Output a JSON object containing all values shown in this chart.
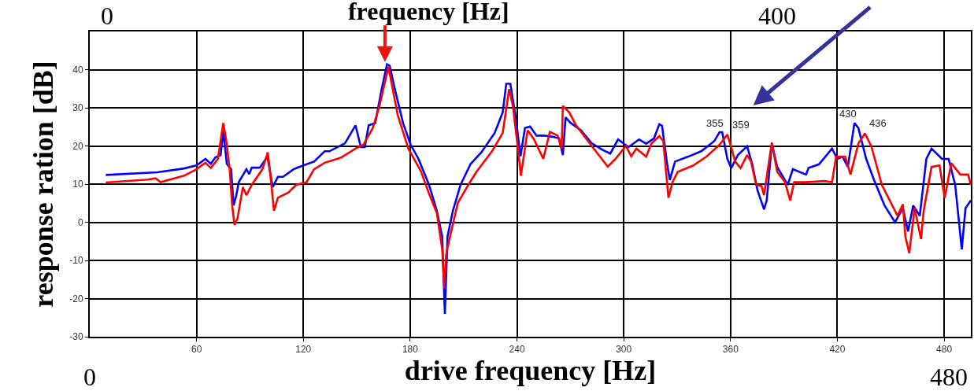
{
  "chart_data": {
    "type": "line",
    "title": "frequency [Hz]",
    "xlabel": "drive frequency [Hz]",
    "ylabel": "response ration [dB]",
    "xlim": [
      0,
      495
    ],
    "xticks": [
      60,
      120,
      180,
      240,
      300,
      360,
      420,
      480
    ],
    "ylim": [
      -30,
      50
    ],
    "yticks": [
      -30,
      -20,
      -10,
      0,
      10,
      20,
      30,
      40
    ],
    "grid": true,
    "marker": "none",
    "line_style": "solid",
    "annotations": [
      {
        "text": "355",
        "x": 355,
        "y": 23.6
      },
      {
        "text": "359",
        "x": 359,
        "y": 23
      },
      {
        "text": "430",
        "x": 430,
        "y": 26
      },
      {
        "text": "436",
        "x": 436,
        "y": 23.3
      },
      "0",
      "400",
      "0",
      "480"
    ],
    "series": [
      {
        "color": "#0000ff",
        "x": [
          9,
          38,
          53,
          60,
          65,
          68,
          70.6,
          73.5,
          75,
          77,
          79.4,
          80.8,
          82.3,
          83.7,
          88,
          89.6,
          91,
          95.5,
          99,
          100,
          102.8,
          105.7,
          108.6,
          114.5,
          120,
          126,
          132,
          134.6,
          143.4,
          149.3,
          152.3,
          154.5,
          156.7,
          160.4,
          164,
          167,
          168.5,
          171.4,
          176,
          180.3,
          184.7,
          190.6,
          195,
          198,
          199.5,
          201,
          204,
          208.3,
          214,
          220,
          227.5,
          232,
          234,
          236.3,
          239.3,
          242,
          244.5,
          247.4,
          251,
          255.5,
          260,
          263.6,
          265.8,
          267.3,
          270,
          276,
          282,
          288,
          292.4,
          296.8,
          302.7,
          308.6,
          312.6,
          317,
          320,
          321.5,
          324.4,
          325.9,
          328.8,
          336.2,
          343.5,
          350.9,
          353.8,
          355.3,
          358.2,
          360.4,
          364.1,
          369.3,
          372.2,
          375.1,
          378.8,
          380.3,
          383.2,
          386.2,
          392.1,
          395,
          402.4,
          403.8,
          409.7,
          417,
          420,
          422.9,
          425.9,
          429.6,
          431.8,
          436.2,
          440.6,
          446.5,
          452.4,
          456.8,
          459.7,
          462.6,
          466.3,
          470,
          472.9,
          478.8,
          482.5,
          486.2,
          489.9,
          492,
          495
        ],
        "values": [
          12.4,
          13.1,
          14.1,
          14.9,
          16.6,
          15.3,
          17,
          17.6,
          24,
          15.3,
          13.9,
          4.4,
          7,
          10.5,
          13.9,
          12.6,
          14.3,
          14.3,
          16.6,
          16.7,
          9.2,
          11.9,
          11.9,
          13.9,
          14.9,
          15.9,
          18.6,
          18.6,
          20.7,
          25.4,
          19.7,
          19.7,
          25.4,
          26,
          34.9,
          41.4,
          41,
          34.9,
          26,
          20.3,
          16.6,
          9.8,
          3,
          -3.7,
          -24,
          -3.7,
          3,
          9.8,
          15.3,
          18.3,
          23.4,
          28.8,
          36.3,
          36.3,
          27.5,
          17.3,
          24.7,
          25.1,
          22.7,
          22.7,
          22.4,
          22,
          17.6,
          27.5,
          26.1,
          24.1,
          20.7,
          19,
          18,
          21.7,
          19.7,
          21.7,
          20.6,
          22,
          25.7,
          25.3,
          15.2,
          11.1,
          15.9,
          17.2,
          18.6,
          21.3,
          23.6,
          23.6,
          16.6,
          14.2,
          17.6,
          19.9,
          15.2,
          8.4,
          3.4,
          5.7,
          20.6,
          14.5,
          9.8,
          13.9,
          12.5,
          14.2,
          15.2,
          19.3,
          16.6,
          17.2,
          14.5,
          26,
          24.7,
          16.6,
          11.1,
          4.4,
          0,
          3.7,
          -2.4,
          4.4,
          1.7,
          16.6,
          19.3,
          16.6,
          16.6,
          9.8,
          -7.1,
          3.7,
          5.7
        ]
      },
      {
        "color": "#ff0000",
        "x": [
          9,
          32.5,
          37,
          39.8,
          53,
          60,
          65,
          68,
          72,
          75,
          76.5,
          78.6,
          80,
          81.3,
          83,
          86,
          88,
          91,
          97,
          100,
          101.3,
          103.5,
          105.7,
          111.6,
          116,
          121.8,
          126,
          132,
          141,
          149.3,
          153.7,
          159,
          162.6,
          167.8,
          173,
          179,
          186.2,
          190.6,
          195,
          198,
          199.2,
          200.2,
          202.4,
          206.8,
          212.7,
          217.2,
          226,
          232,
          235.6,
          237.8,
          240,
          242.2,
          246,
          249.6,
          254.8,
          258.5,
          262.9,
          265.1,
          265.8,
          269.4,
          273.2,
          282,
          291,
          295.4,
          301.2,
          304.2,
          307.1,
          312.6,
          315.5,
          320,
          322.2,
          325.1,
          327.4,
          330.3,
          339.1,
          346.5,
          353.8,
          358.2,
          360.4,
          362.6,
          365.6,
          369.3,
          371.5,
          374.4,
          377.4,
          378.8,
          383.2,
          386.2,
          390.6,
          393.5,
          395.7,
          402.4,
          412.6,
          417,
          419.3,
          424.4,
          427.4,
          431.8,
          435.5,
          439.1,
          445,
          453.8,
          456.8,
          458.2,
          460.4,
          463.4,
          467,
          468.5,
          472.9,
          477.4,
          480.3,
          484,
          489.1,
          493.5,
          495
        ],
        "values": [
          10.4,
          11.2,
          11.5,
          10.5,
          12.2,
          13.9,
          15.6,
          14.2,
          16.6,
          26,
          22,
          13.9,
          4.4,
          -0.7,
          1,
          9.2,
          7.1,
          9.8,
          13.9,
          18.3,
          13.2,
          3,
          6.4,
          7.8,
          9.8,
          10.5,
          13.9,
          15.6,
          16.9,
          19.3,
          20.3,
          24.7,
          30.2,
          40.7,
          28.1,
          19.3,
          13.2,
          7.5,
          2.4,
          -7.1,
          -17.3,
          -8.5,
          -3.7,
          5.1,
          9.8,
          13.2,
          18.6,
          23.4,
          34.9,
          30.2,
          21.4,
          12.2,
          24.1,
          21.7,
          16.6,
          23.7,
          22.7,
          19.3,
          30.5,
          28.8,
          25.4,
          20,
          14.6,
          16.6,
          20,
          17.3,
          19.3,
          17.2,
          20.6,
          22.6,
          21.3,
          6.4,
          10.5,
          13.2,
          14.9,
          17.2,
          20.3,
          23,
          19.6,
          15.9,
          14.2,
          17.6,
          15.9,
          9.8,
          9.5,
          7.1,
          20.9,
          13.2,
          10.5,
          5.7,
          10.5,
          10.5,
          10.8,
          10.5,
          17.2,
          17.2,
          12.5,
          20.6,
          23.3,
          19.9,
          9.8,
          1.7,
          4.7,
          -3.7,
          -8.1,
          3.7,
          -4.4,
          3,
          14.5,
          14.9,
          6.4,
          15.5,
          12.5,
          12.5,
          9.8
        ]
      }
    ]
  }
}
